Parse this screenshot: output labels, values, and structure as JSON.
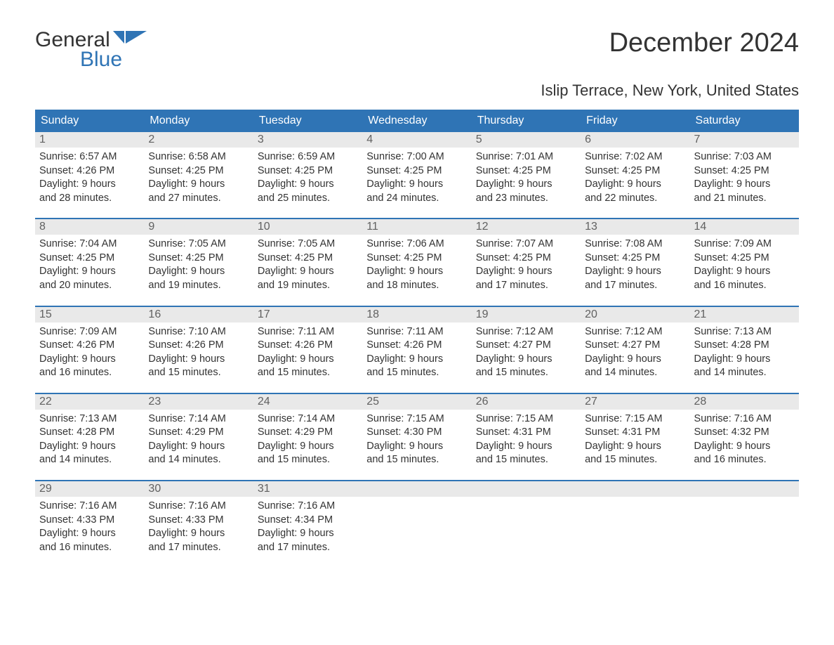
{
  "logo": {
    "line1": "General",
    "line2": "Blue"
  },
  "title": "December 2024",
  "subtitle": "Islip Terrace, New York, United States",
  "colors": {
    "header_bg": "#2f74b5",
    "header_text": "#ffffff",
    "daynum_bg": "#e9e9e9",
    "daynum_text": "#616161",
    "body_text": "#333333",
    "week_divider": "#2f74b5",
    "logo_blue": "#2f74b5"
  },
  "day_headers": [
    "Sunday",
    "Monday",
    "Tuesday",
    "Wednesday",
    "Thursday",
    "Friday",
    "Saturday"
  ],
  "weeks": [
    [
      {
        "day": "1",
        "sunrise": "Sunrise: 6:57 AM",
        "sunset": "Sunset: 4:26 PM",
        "dl1": "Daylight: 9 hours",
        "dl2": "and 28 minutes."
      },
      {
        "day": "2",
        "sunrise": "Sunrise: 6:58 AM",
        "sunset": "Sunset: 4:25 PM",
        "dl1": "Daylight: 9 hours",
        "dl2": "and 27 minutes."
      },
      {
        "day": "3",
        "sunrise": "Sunrise: 6:59 AM",
        "sunset": "Sunset: 4:25 PM",
        "dl1": "Daylight: 9 hours",
        "dl2": "and 25 minutes."
      },
      {
        "day": "4",
        "sunrise": "Sunrise: 7:00 AM",
        "sunset": "Sunset: 4:25 PM",
        "dl1": "Daylight: 9 hours",
        "dl2": "and 24 minutes."
      },
      {
        "day": "5",
        "sunrise": "Sunrise: 7:01 AM",
        "sunset": "Sunset: 4:25 PM",
        "dl1": "Daylight: 9 hours",
        "dl2": "and 23 minutes."
      },
      {
        "day": "6",
        "sunrise": "Sunrise: 7:02 AM",
        "sunset": "Sunset: 4:25 PM",
        "dl1": "Daylight: 9 hours",
        "dl2": "and 22 minutes."
      },
      {
        "day": "7",
        "sunrise": "Sunrise: 7:03 AM",
        "sunset": "Sunset: 4:25 PM",
        "dl1": "Daylight: 9 hours",
        "dl2": "and 21 minutes."
      }
    ],
    [
      {
        "day": "8",
        "sunrise": "Sunrise: 7:04 AM",
        "sunset": "Sunset: 4:25 PM",
        "dl1": "Daylight: 9 hours",
        "dl2": "and 20 minutes."
      },
      {
        "day": "9",
        "sunrise": "Sunrise: 7:05 AM",
        "sunset": "Sunset: 4:25 PM",
        "dl1": "Daylight: 9 hours",
        "dl2": "and 19 minutes."
      },
      {
        "day": "10",
        "sunrise": "Sunrise: 7:05 AM",
        "sunset": "Sunset: 4:25 PM",
        "dl1": "Daylight: 9 hours",
        "dl2": "and 19 minutes."
      },
      {
        "day": "11",
        "sunrise": "Sunrise: 7:06 AM",
        "sunset": "Sunset: 4:25 PM",
        "dl1": "Daylight: 9 hours",
        "dl2": "and 18 minutes."
      },
      {
        "day": "12",
        "sunrise": "Sunrise: 7:07 AM",
        "sunset": "Sunset: 4:25 PM",
        "dl1": "Daylight: 9 hours",
        "dl2": "and 17 minutes."
      },
      {
        "day": "13",
        "sunrise": "Sunrise: 7:08 AM",
        "sunset": "Sunset: 4:25 PM",
        "dl1": "Daylight: 9 hours",
        "dl2": "and 17 minutes."
      },
      {
        "day": "14",
        "sunrise": "Sunrise: 7:09 AM",
        "sunset": "Sunset: 4:25 PM",
        "dl1": "Daylight: 9 hours",
        "dl2": "and 16 minutes."
      }
    ],
    [
      {
        "day": "15",
        "sunrise": "Sunrise: 7:09 AM",
        "sunset": "Sunset: 4:26 PM",
        "dl1": "Daylight: 9 hours",
        "dl2": "and 16 minutes."
      },
      {
        "day": "16",
        "sunrise": "Sunrise: 7:10 AM",
        "sunset": "Sunset: 4:26 PM",
        "dl1": "Daylight: 9 hours",
        "dl2": "and 15 minutes."
      },
      {
        "day": "17",
        "sunrise": "Sunrise: 7:11 AM",
        "sunset": "Sunset: 4:26 PM",
        "dl1": "Daylight: 9 hours",
        "dl2": "and 15 minutes."
      },
      {
        "day": "18",
        "sunrise": "Sunrise: 7:11 AM",
        "sunset": "Sunset: 4:26 PM",
        "dl1": "Daylight: 9 hours",
        "dl2": "and 15 minutes."
      },
      {
        "day": "19",
        "sunrise": "Sunrise: 7:12 AM",
        "sunset": "Sunset: 4:27 PM",
        "dl1": "Daylight: 9 hours",
        "dl2": "and 15 minutes."
      },
      {
        "day": "20",
        "sunrise": "Sunrise: 7:12 AM",
        "sunset": "Sunset: 4:27 PM",
        "dl1": "Daylight: 9 hours",
        "dl2": "and 14 minutes."
      },
      {
        "day": "21",
        "sunrise": "Sunrise: 7:13 AM",
        "sunset": "Sunset: 4:28 PM",
        "dl1": "Daylight: 9 hours",
        "dl2": "and 14 minutes."
      }
    ],
    [
      {
        "day": "22",
        "sunrise": "Sunrise: 7:13 AM",
        "sunset": "Sunset: 4:28 PM",
        "dl1": "Daylight: 9 hours",
        "dl2": "and 14 minutes."
      },
      {
        "day": "23",
        "sunrise": "Sunrise: 7:14 AM",
        "sunset": "Sunset: 4:29 PM",
        "dl1": "Daylight: 9 hours",
        "dl2": "and 14 minutes."
      },
      {
        "day": "24",
        "sunrise": "Sunrise: 7:14 AM",
        "sunset": "Sunset: 4:29 PM",
        "dl1": "Daylight: 9 hours",
        "dl2": "and 15 minutes."
      },
      {
        "day": "25",
        "sunrise": "Sunrise: 7:15 AM",
        "sunset": "Sunset: 4:30 PM",
        "dl1": "Daylight: 9 hours",
        "dl2": "and 15 minutes."
      },
      {
        "day": "26",
        "sunrise": "Sunrise: 7:15 AM",
        "sunset": "Sunset: 4:31 PM",
        "dl1": "Daylight: 9 hours",
        "dl2": "and 15 minutes."
      },
      {
        "day": "27",
        "sunrise": "Sunrise: 7:15 AM",
        "sunset": "Sunset: 4:31 PM",
        "dl1": "Daylight: 9 hours",
        "dl2": "and 15 minutes."
      },
      {
        "day": "28",
        "sunrise": "Sunrise: 7:16 AM",
        "sunset": "Sunset: 4:32 PM",
        "dl1": "Daylight: 9 hours",
        "dl2": "and 16 minutes."
      }
    ],
    [
      {
        "day": "29",
        "sunrise": "Sunrise: 7:16 AM",
        "sunset": "Sunset: 4:33 PM",
        "dl1": "Daylight: 9 hours",
        "dl2": "and 16 minutes."
      },
      {
        "day": "30",
        "sunrise": "Sunrise: 7:16 AM",
        "sunset": "Sunset: 4:33 PM",
        "dl1": "Daylight: 9 hours",
        "dl2": "and 17 minutes."
      },
      {
        "day": "31",
        "sunrise": "Sunrise: 7:16 AM",
        "sunset": "Sunset: 4:34 PM",
        "dl1": "Daylight: 9 hours",
        "dl2": "and 17 minutes."
      },
      {
        "empty": true
      },
      {
        "empty": true
      },
      {
        "empty": true
      },
      {
        "empty": true
      }
    ]
  ]
}
